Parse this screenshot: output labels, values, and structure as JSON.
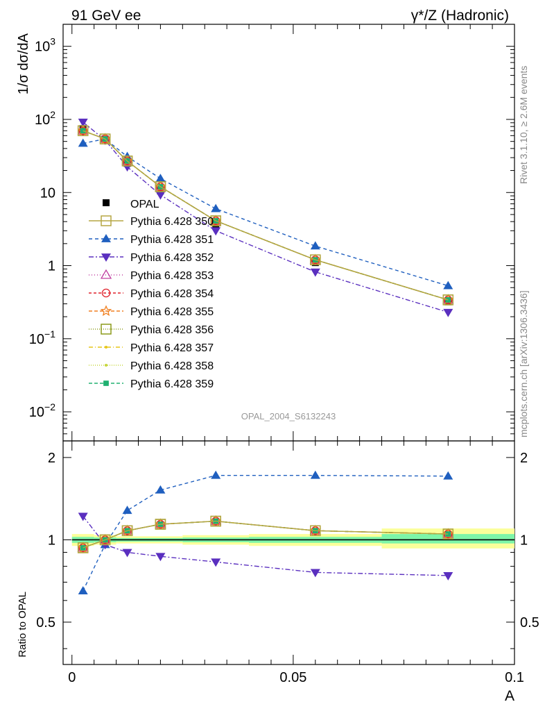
{
  "header": {
    "left": "91 GeV ee",
    "right": "γ*/Z (Hadronic)"
  },
  "side": {
    "rivet": "Rivet 3.1.10, ≥ 2.6M events",
    "mcplots": "mcplots.cern.ch [arXiv:1306.3436]"
  },
  "watermark": "OPAL_2004_S6132243",
  "chart_data": [
    {
      "type": "line",
      "panel": "main",
      "ylabel": "1/σ dσ/dA",
      "xlabel": "",
      "xlim": [
        -0.002,
        0.1
      ],
      "ylim": [
        0.004,
        2000
      ],
      "yscale": "log",
      "yticks": [
        {
          "value": 0.01,
          "base": "10",
          "exp": "−2"
        },
        {
          "value": 0.1,
          "base": "10",
          "exp": "−1"
        },
        {
          "value": 1,
          "base": "1",
          "exp": ""
        },
        {
          "value": 10,
          "base": "10",
          "exp": ""
        },
        {
          "value": 100,
          "base": "10",
          "exp": "2"
        },
        {
          "value": 1000,
          "base": "10",
          "exp": "3"
        }
      ],
      "x": [
        0.0025,
        0.0075,
        0.0125,
        0.02,
        0.0325,
        0.055,
        0.085
      ],
      "data": {
        "name": "OPAL",
        "values": [
          75,
          54,
          25,
          10.5,
          3.5,
          1.1,
          0.32
        ]
      },
      "legend_placement": "center-left",
      "series": [
        {
          "name": "Pythia 6.428 350",
          "color": "#b5a642",
          "marker": "square-open",
          "dash": "solid",
          "values": [
            70,
            54,
            27,
            12,
            4.1,
            1.2,
            0.34
          ]
        },
        {
          "name": "Pythia 6.428 351",
          "color": "#1f5fbf",
          "marker": "triangle-up",
          "dash": "5,4",
          "values": [
            47,
            54,
            31,
            15.5,
            6.0,
            1.85,
            0.53
          ]
        },
        {
          "name": "Pythia 6.428 352",
          "color": "#5a2fbf",
          "marker": "triangle-down",
          "dash": "7,3,2,3",
          "values": [
            92,
            52,
            22.5,
            9.3,
            3.0,
            0.82,
            0.23
          ]
        },
        {
          "name": "Pythia 6.428 353",
          "color": "#c03fa0",
          "marker": "triangle-open",
          "dash": "1,3",
          "values": [
            70,
            54,
            27,
            12,
            4.1,
            1.2,
            0.34
          ]
        },
        {
          "name": "Pythia 6.428 354",
          "color": "#e0202a",
          "marker": "circle-open",
          "dash": "4,3",
          "values": [
            70,
            54,
            27,
            12,
            4.1,
            1.2,
            0.34
          ]
        },
        {
          "name": "Pythia 6.428 355",
          "color": "#f07f20",
          "marker": "star-open",
          "dash": "5,3",
          "values": [
            70,
            54,
            27,
            12,
            4.1,
            1.2,
            0.34
          ]
        },
        {
          "name": "Pythia 6.428 356",
          "color": "#8c9a1a",
          "marker": "square-open",
          "dash": "1,2",
          "values": [
            70,
            54,
            27,
            12,
            4.1,
            1.2,
            0.34
          ]
        },
        {
          "name": "Pythia 6.428 357",
          "color": "#e6c619",
          "marker": "dot",
          "dash": "6,3,1,3",
          "values": [
            70,
            54,
            27,
            12,
            4.1,
            1.2,
            0.34
          ]
        },
        {
          "name": "Pythia 6.428 358",
          "color": "#c6d63a",
          "marker": "dot",
          "dash": "1,2",
          "values": [
            70,
            54,
            27,
            12,
            4.1,
            1.2,
            0.34
          ]
        },
        {
          "name": "Pythia 6.428 359",
          "color": "#20b070",
          "marker": "square",
          "dash": "5,3",
          "values": [
            70,
            54,
            27,
            12,
            4.1,
            1.2,
            0.34
          ]
        }
      ]
    },
    {
      "type": "line",
      "panel": "ratio",
      "ylabel": "Ratio to OPAL",
      "xlabel": "A",
      "xlim": [
        -0.002,
        0.1
      ],
      "ylim": [
        0.35,
        2.3
      ],
      "yscale": "log",
      "yticks": [
        {
          "value": 0.5,
          "label": "0.5"
        },
        {
          "value": 1,
          "label": "1"
        },
        {
          "value": 2,
          "label": "2"
        }
      ],
      "xticks": [
        {
          "value": 0,
          "label": "0"
        },
        {
          "value": 0.05,
          "label": "0.05"
        },
        {
          "value": 0.1,
          "label": "0.1"
        }
      ],
      "x": [
        0.0025,
        0.0075,
        0.0125,
        0.02,
        0.0325,
        0.055,
        0.085
      ],
      "bands": [
        {
          "x": [
            0,
            0.005
          ],
          "inner": [
            0.975,
            1.025
          ],
          "outer": [
            0.95,
            1.05
          ]
        },
        {
          "x": [
            0.005,
            0.01
          ],
          "inner": [
            0.98,
            1.02
          ],
          "outer": [
            0.96,
            1.04
          ]
        },
        {
          "x": [
            0.01,
            0.015
          ],
          "inner": [
            0.985,
            1.015
          ],
          "outer": [
            0.97,
            1.03
          ]
        },
        {
          "x": [
            0.015,
            0.025
          ],
          "inner": [
            0.985,
            1.015
          ],
          "outer": [
            0.97,
            1.03
          ]
        },
        {
          "x": [
            0.025,
            0.04
          ],
          "inner": [
            0.98,
            1.02
          ],
          "outer": [
            0.96,
            1.04
          ]
        },
        {
          "x": [
            0.04,
            0.07
          ],
          "inner": [
            0.975,
            1.025
          ],
          "outer": [
            0.95,
            1.05
          ]
        },
        {
          "x": [
            0.07,
            0.1
          ],
          "inner": [
            0.97,
            1.05
          ],
          "outer": [
            0.93,
            1.1
          ]
        }
      ],
      "series": [
        {
          "name": "Pythia 6.428 350",
          "values": [
            0.935,
            1.0,
            1.08,
            1.14,
            1.17,
            1.08,
            1.05
          ]
        },
        {
          "name": "Pythia 6.428 351",
          "values": [
            0.65,
            0.96,
            1.28,
            1.52,
            1.72,
            1.72,
            1.71
          ]
        },
        {
          "name": "Pythia 6.428 352",
          "values": [
            1.22,
            0.96,
            0.9,
            0.87,
            0.83,
            0.76,
            0.74
          ]
        },
        {
          "name": "Pythia 6.428 353",
          "values": [
            0.935,
            1.0,
            1.08,
            1.14,
            1.17,
            1.08,
            1.05
          ]
        },
        {
          "name": "Pythia 6.428 354",
          "values": [
            0.935,
            1.0,
            1.08,
            1.14,
            1.17,
            1.08,
            1.05
          ]
        },
        {
          "name": "Pythia 6.428 355",
          "values": [
            0.935,
            1.0,
            1.08,
            1.14,
            1.17,
            1.08,
            1.05
          ]
        },
        {
          "name": "Pythia 6.428 356",
          "values": [
            0.935,
            1.0,
            1.08,
            1.14,
            1.17,
            1.08,
            1.05
          ]
        },
        {
          "name": "Pythia 6.428 357",
          "values": [
            0.935,
            1.0,
            1.08,
            1.14,
            1.17,
            1.08,
            1.05
          ]
        },
        {
          "name": "Pythia 6.428 358",
          "values": [
            0.935,
            1.0,
            1.08,
            1.14,
            1.17,
            1.08,
            1.05
          ]
        },
        {
          "name": "Pythia 6.428 359",
          "values": [
            0.935,
            1.0,
            1.08,
            1.14,
            1.17,
            1.08,
            1.05
          ]
        }
      ]
    }
  ]
}
